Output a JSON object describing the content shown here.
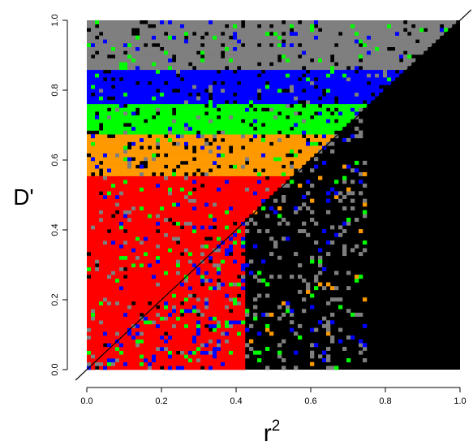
{
  "chart_data": {
    "type": "heatmap",
    "title": "",
    "xlabel": "r",
    "xlabel_superscript": "2",
    "ylabel": "D'",
    "xlim": [
      0,
      1
    ],
    "ylim": [
      0,
      1
    ],
    "x_ticks": [
      "0.0",
      "0.2",
      "0.4",
      "0.6",
      "0.8",
      "1.0"
    ],
    "y_ticks": [
      "0.0",
      "0.2",
      "0.4",
      "0.6",
      "0.8",
      "1.0"
    ],
    "grid": false,
    "legend": "none",
    "background_color": "#000000",
    "diagonal_line": true,
    "color_palette": [
      "#ff0000",
      "#ff9900",
      "#00ff00",
      "#0000ff",
      "#7f7f7f",
      "#000000"
    ],
    "upper_triangle_bands": [
      {
        "from": 0.0,
        "to": 0.55,
        "color": "#ff0000"
      },
      {
        "from": 0.55,
        "to": 0.67,
        "color": "#ff9900"
      },
      {
        "from": 0.67,
        "to": 0.76,
        "color": "#00ff00"
      },
      {
        "from": 0.76,
        "to": 0.86,
        "color": "#0000ff"
      },
      {
        "from": 0.86,
        "to": 1.0,
        "color": "#7f7f7f"
      }
    ],
    "lower_triangle_regions": [
      {
        "r2_range": [
          0.0,
          0.42
        ],
        "dominant": "#ff0000",
        "mixed": [
          "#0000ff",
          "#00ff00",
          "#7f7f7f"
        ]
      },
      {
        "r2_range": [
          0.42,
          0.75
        ],
        "dominant": "#000000",
        "mixed": [
          "#7f7f7f",
          "#0000ff",
          "#00ff00",
          "#ff9900"
        ]
      },
      {
        "r2_range": [
          0.75,
          1.0
        ],
        "dominant": "#000000",
        "mixed": []
      }
    ]
  }
}
